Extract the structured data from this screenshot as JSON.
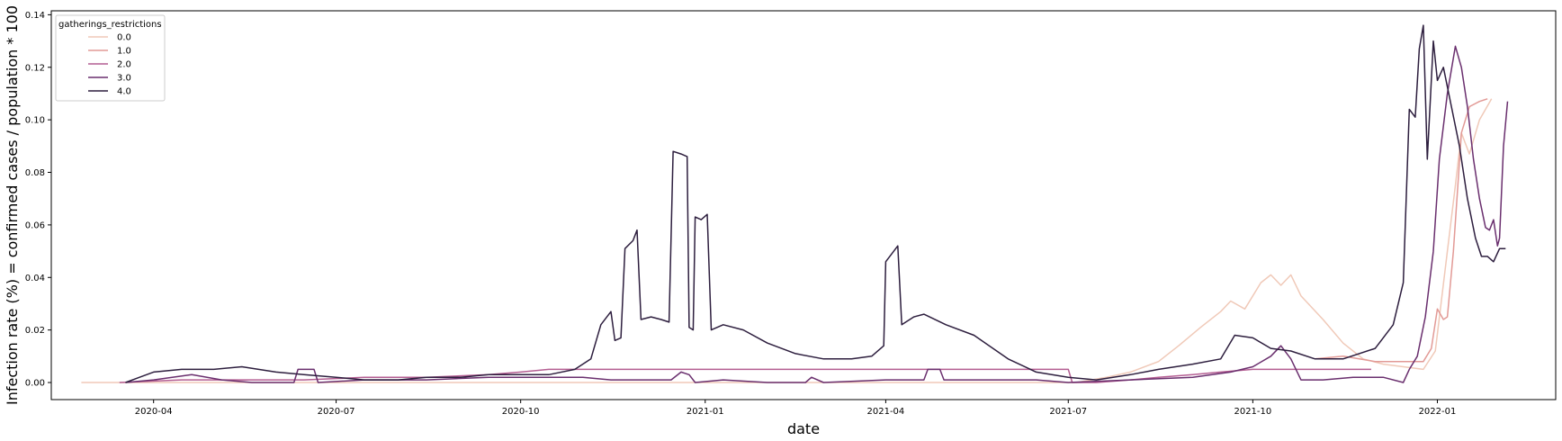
{
  "chart_data": {
    "type": "line",
    "xlabel": "date",
    "ylabel": "Infection rate (%) = confirmed cases / population * 100",
    "xlim": [
      "2020-02-10",
      "2022-03-01"
    ],
    "ylim": [
      -0.0065,
      0.1415
    ],
    "x_ticks": [
      {
        "value": "2020-04-01",
        "label": "2020-04"
      },
      {
        "value": "2020-07-01",
        "label": "2020-07"
      },
      {
        "value": "2020-10-01",
        "label": "2020-10"
      },
      {
        "value": "2021-01-01",
        "label": "2021-01"
      },
      {
        "value": "2021-04-01",
        "label": "2021-04"
      },
      {
        "value": "2021-07-01",
        "label": "2021-07"
      },
      {
        "value": "2021-10-01",
        "label": "2021-10"
      },
      {
        "value": "2022-01-01",
        "label": "2022-01"
      }
    ],
    "y_ticks": [
      {
        "value": 0.0,
        "label": "0.00"
      },
      {
        "value": 0.02,
        "label": "0.02"
      },
      {
        "value": 0.04,
        "label": "0.04"
      },
      {
        "value": 0.06,
        "label": "0.06"
      },
      {
        "value": 0.08,
        "label": "0.08"
      },
      {
        "value": 0.1,
        "label": "0.10"
      },
      {
        "value": 0.12,
        "label": "0.12"
      },
      {
        "value": 0.14,
        "label": "0.14"
      }
    ],
    "grid": false,
    "legend": {
      "title": "gatherings_restrictions",
      "placement": "top-left"
    },
    "series": [
      {
        "name": "0.0",
        "color": "#f0c9b8",
        "points": [
          [
            "2020-02-25",
            0.0
          ],
          [
            "2020-06-01",
            0.0
          ],
          [
            "2020-10-01",
            0.0
          ],
          [
            "2021-01-01",
            0.0
          ],
          [
            "2021-04-01",
            0.0
          ],
          [
            "2021-07-05",
            0.0
          ],
          [
            "2021-07-20",
            0.002
          ],
          [
            "2021-08-01",
            0.004
          ],
          [
            "2021-08-15",
            0.008
          ],
          [
            "2021-08-25",
            0.014
          ],
          [
            "2021-09-05",
            0.021
          ],
          [
            "2021-09-15",
            0.027
          ],
          [
            "2021-09-20",
            0.031
          ],
          [
            "2021-09-27",
            0.028
          ],
          [
            "2021-10-05",
            0.038
          ],
          [
            "2021-10-10",
            0.041
          ],
          [
            "2021-10-15",
            0.037
          ],
          [
            "2021-10-20",
            0.041
          ],
          [
            "2021-10-25",
            0.033
          ],
          [
            "2021-11-05",
            0.024
          ],
          [
            "2021-11-15",
            0.015
          ],
          [
            "2021-11-25",
            0.009
          ],
          [
            "2021-12-05",
            0.007
          ],
          [
            "2021-12-15",
            0.006
          ],
          [
            "2021-12-25",
            0.005
          ],
          [
            "2021-12-31",
            0.012
          ],
          [
            "2022-01-06",
            0.05
          ],
          [
            "2022-01-10",
            0.075
          ],
          [
            "2022-01-13",
            0.095
          ],
          [
            "2022-01-17",
            0.087
          ],
          [
            "2022-01-22",
            0.1
          ],
          [
            "2022-01-25",
            0.104
          ],
          [
            "2022-01-28",
            0.108
          ]
        ]
      },
      {
        "name": "1.0",
        "color": "#e29a96",
        "points": [
          [
            "2021-11-01",
            0.009
          ],
          [
            "2021-11-15",
            0.01
          ],
          [
            "2021-12-01",
            0.008
          ],
          [
            "2021-12-15",
            0.008
          ],
          [
            "2021-12-25",
            0.008
          ],
          [
            "2021-12-29",
            0.013
          ],
          [
            "2022-01-01",
            0.028
          ],
          [
            "2022-01-04",
            0.024
          ],
          [
            "2022-01-06",
            0.025
          ],
          [
            "2022-01-09",
            0.05
          ],
          [
            "2022-01-13",
            0.095
          ],
          [
            "2022-01-17",
            0.105
          ],
          [
            "2022-01-22",
            0.107
          ],
          [
            "2022-01-26",
            0.108
          ]
        ]
      },
      {
        "name": "2.0",
        "color": "#b45e92",
        "points": [
          [
            "2020-03-15",
            0.0
          ],
          [
            "2020-04-15",
            0.001
          ],
          [
            "2020-05-15",
            0.001
          ],
          [
            "2020-06-15",
            0.001
          ],
          [
            "2020-07-15",
            0.002
          ],
          [
            "2020-08-15",
            0.002
          ],
          [
            "2020-09-15",
            0.003
          ],
          [
            "2020-10-01",
            0.004
          ],
          [
            "2020-10-15",
            0.005
          ],
          [
            "2020-11-15",
            0.005
          ],
          [
            "2020-12-15",
            0.005
          ],
          [
            "2021-01-15",
            0.005
          ],
          [
            "2021-03-01",
            0.005
          ],
          [
            "2021-04-15",
            0.005
          ],
          [
            "2021-06-01",
            0.005
          ],
          [
            "2021-07-01",
            0.005
          ],
          [
            "2021-07-03",
            0.0
          ],
          [
            "2021-07-15",
            0.0
          ],
          [
            "2021-08-01",
            0.001
          ],
          [
            "2021-08-15",
            0.002
          ],
          [
            "2021-09-01",
            0.003
          ],
          [
            "2021-09-15",
            0.004
          ],
          [
            "2021-10-01",
            0.005
          ],
          [
            "2021-10-15",
            0.005
          ],
          [
            "2021-11-01",
            0.005
          ],
          [
            "2021-11-15",
            0.005
          ],
          [
            "2021-11-29",
            0.005
          ]
        ]
      },
      {
        "name": "3.0",
        "color": "#6a2f6e",
        "points": [
          [
            "2020-03-18",
            0.0
          ],
          [
            "2020-04-01",
            0.001
          ],
          [
            "2020-04-20",
            0.003
          ],
          [
            "2020-05-05",
            0.001
          ],
          [
            "2020-05-20",
            0.0
          ],
          [
            "2020-06-10",
            0.0
          ],
          [
            "2020-06-12",
            0.005
          ],
          [
            "2020-06-20",
            0.005
          ],
          [
            "2020-06-22",
            0.0
          ],
          [
            "2020-07-15",
            0.001
          ],
          [
            "2020-08-15",
            0.001
          ],
          [
            "2020-09-15",
            0.002
          ],
          [
            "2020-10-15",
            0.002
          ],
          [
            "2020-11-01",
            0.002
          ],
          [
            "2020-11-15",
            0.001
          ],
          [
            "2020-12-01",
            0.001
          ],
          [
            "2020-12-15",
            0.001
          ],
          [
            "2020-12-20",
            0.004
          ],
          [
            "2020-12-24",
            0.003
          ],
          [
            "2020-12-27",
            0.0
          ],
          [
            "2021-01-10",
            0.001
          ],
          [
            "2021-02-01",
            0.0
          ],
          [
            "2021-02-20",
            0.0
          ],
          [
            "2021-02-23",
            0.002
          ],
          [
            "2021-03-01",
            0.0
          ],
          [
            "2021-04-01",
            0.001
          ],
          [
            "2021-04-20",
            0.001
          ],
          [
            "2021-04-22",
            0.005
          ],
          [
            "2021-04-28",
            0.005
          ],
          [
            "2021-04-30",
            0.001
          ],
          [
            "2021-05-15",
            0.001
          ],
          [
            "2021-06-15",
            0.001
          ],
          [
            "2021-07-01",
            0.0
          ],
          [
            "2021-08-01",
            0.001
          ],
          [
            "2021-09-01",
            0.002
          ],
          [
            "2021-09-20",
            0.004
          ],
          [
            "2021-10-01",
            0.006
          ],
          [
            "2021-10-10",
            0.01
          ],
          [
            "2021-10-15",
            0.014
          ],
          [
            "2021-10-20",
            0.009
          ],
          [
            "2021-10-25",
            0.001
          ],
          [
            "2021-11-05",
            0.001
          ],
          [
            "2021-11-20",
            0.002
          ],
          [
            "2021-12-05",
            0.002
          ],
          [
            "2021-12-15",
            0.0
          ],
          [
            "2021-12-18",
            0.005
          ],
          [
            "2021-12-22",
            0.01
          ],
          [
            "2021-12-26",
            0.025
          ],
          [
            "2021-12-30",
            0.05
          ],
          [
            "2022-01-02",
            0.085
          ],
          [
            "2022-01-06",
            0.11
          ],
          [
            "2022-01-10",
            0.128
          ],
          [
            "2022-01-13",
            0.12
          ],
          [
            "2022-01-16",
            0.105
          ],
          [
            "2022-01-19",
            0.085
          ],
          [
            "2022-01-22",
            0.07
          ],
          [
            "2022-01-25",
            0.059
          ],
          [
            "2022-01-27",
            0.058
          ],
          [
            "2022-01-29",
            0.062
          ],
          [
            "2022-01-31",
            0.052
          ],
          [
            "2022-02-01",
            0.055
          ],
          [
            "2022-02-03",
            0.09
          ],
          [
            "2022-02-05",
            0.107
          ]
        ]
      },
      {
        "name": "4.0",
        "color": "#2d1e3e",
        "points": [
          [
            "2020-03-18",
            0.0
          ],
          [
            "2020-03-25",
            0.002
          ],
          [
            "2020-04-01",
            0.004
          ],
          [
            "2020-04-15",
            0.005
          ],
          [
            "2020-05-01",
            0.005
          ],
          [
            "2020-05-15",
            0.006
          ],
          [
            "2020-06-01",
            0.004
          ],
          [
            "2020-06-15",
            0.003
          ],
          [
            "2020-07-01",
            0.002
          ],
          [
            "2020-07-15",
            0.001
          ],
          [
            "2020-08-01",
            0.001
          ],
          [
            "2020-08-15",
            0.002
          ],
          [
            "2020-09-01",
            0.002
          ],
          [
            "2020-09-15",
            0.003
          ],
          [
            "2020-10-01",
            0.003
          ],
          [
            "2020-10-15",
            0.003
          ],
          [
            "2020-10-28",
            0.005
          ],
          [
            "2020-11-05",
            0.009
          ],
          [
            "2020-11-10",
            0.022
          ],
          [
            "2020-11-15",
            0.027
          ],
          [
            "2020-11-17",
            0.016
          ],
          [
            "2020-11-20",
            0.017
          ],
          [
            "2020-11-22",
            0.051
          ],
          [
            "2020-11-26",
            0.054
          ],
          [
            "2020-11-28",
            0.058
          ],
          [
            "2020-11-30",
            0.024
          ],
          [
            "2020-12-05",
            0.025
          ],
          [
            "2020-12-10",
            0.024
          ],
          [
            "2020-12-14",
            0.023
          ],
          [
            "2020-12-16",
            0.088
          ],
          [
            "2020-12-20",
            0.087
          ],
          [
            "2020-12-23",
            0.086
          ],
          [
            "2020-12-24",
            0.021
          ],
          [
            "2020-12-26",
            0.02
          ],
          [
            "2020-12-27",
            0.063
          ],
          [
            "2020-12-30",
            0.062
          ],
          [
            "2021-01-02",
            0.064
          ],
          [
            "2021-01-04",
            0.02
          ],
          [
            "2021-01-10",
            0.022
          ],
          [
            "2021-01-20",
            0.02
          ],
          [
            "2021-02-01",
            0.015
          ],
          [
            "2021-02-15",
            0.011
          ],
          [
            "2021-03-01",
            0.009
          ],
          [
            "2021-03-15",
            0.009
          ],
          [
            "2021-03-25",
            0.01
          ],
          [
            "2021-03-31",
            0.014
          ],
          [
            "2021-04-01",
            0.046
          ],
          [
            "2021-04-07",
            0.052
          ],
          [
            "2021-04-09",
            0.022
          ],
          [
            "2021-04-15",
            0.025
          ],
          [
            "2021-04-20",
            0.026
          ],
          [
            "2021-05-01",
            0.022
          ],
          [
            "2021-05-15",
            0.018
          ],
          [
            "2021-06-01",
            0.009
          ],
          [
            "2021-06-15",
            0.004
          ],
          [
            "2021-07-01",
            0.002
          ],
          [
            "2021-07-15",
            0.001
          ],
          [
            "2021-08-01",
            0.003
          ],
          [
            "2021-08-15",
            0.005
          ],
          [
            "2021-09-01",
            0.007
          ],
          [
            "2021-09-15",
            0.009
          ],
          [
            "2021-09-22",
            0.018
          ],
          [
            "2021-10-01",
            0.017
          ],
          [
            "2021-10-10",
            0.013
          ],
          [
            "2021-10-20",
            0.012
          ],
          [
            "2021-11-01",
            0.009
          ],
          [
            "2021-11-15",
            0.009
          ],
          [
            "2021-12-01",
            0.013
          ],
          [
            "2021-12-10",
            0.022
          ],
          [
            "2021-12-15",
            0.038
          ],
          [
            "2021-12-18",
            0.104
          ],
          [
            "2021-12-21",
            0.101
          ],
          [
            "2021-12-23",
            0.127
          ],
          [
            "2021-12-25",
            0.136
          ],
          [
            "2021-12-27",
            0.085
          ],
          [
            "2021-12-30",
            0.13
          ],
          [
            "2022-01-01",
            0.115
          ],
          [
            "2022-01-04",
            0.12
          ],
          [
            "2022-01-08",
            0.105
          ],
          [
            "2022-01-12",
            0.09
          ],
          [
            "2022-01-16",
            0.07
          ],
          [
            "2022-01-20",
            0.055
          ],
          [
            "2022-01-23",
            0.048
          ],
          [
            "2022-01-26",
            0.048
          ],
          [
            "2022-01-29",
            0.046
          ],
          [
            "2022-02-01",
            0.051
          ],
          [
            "2022-02-04",
            0.051
          ]
        ]
      }
    ]
  }
}
